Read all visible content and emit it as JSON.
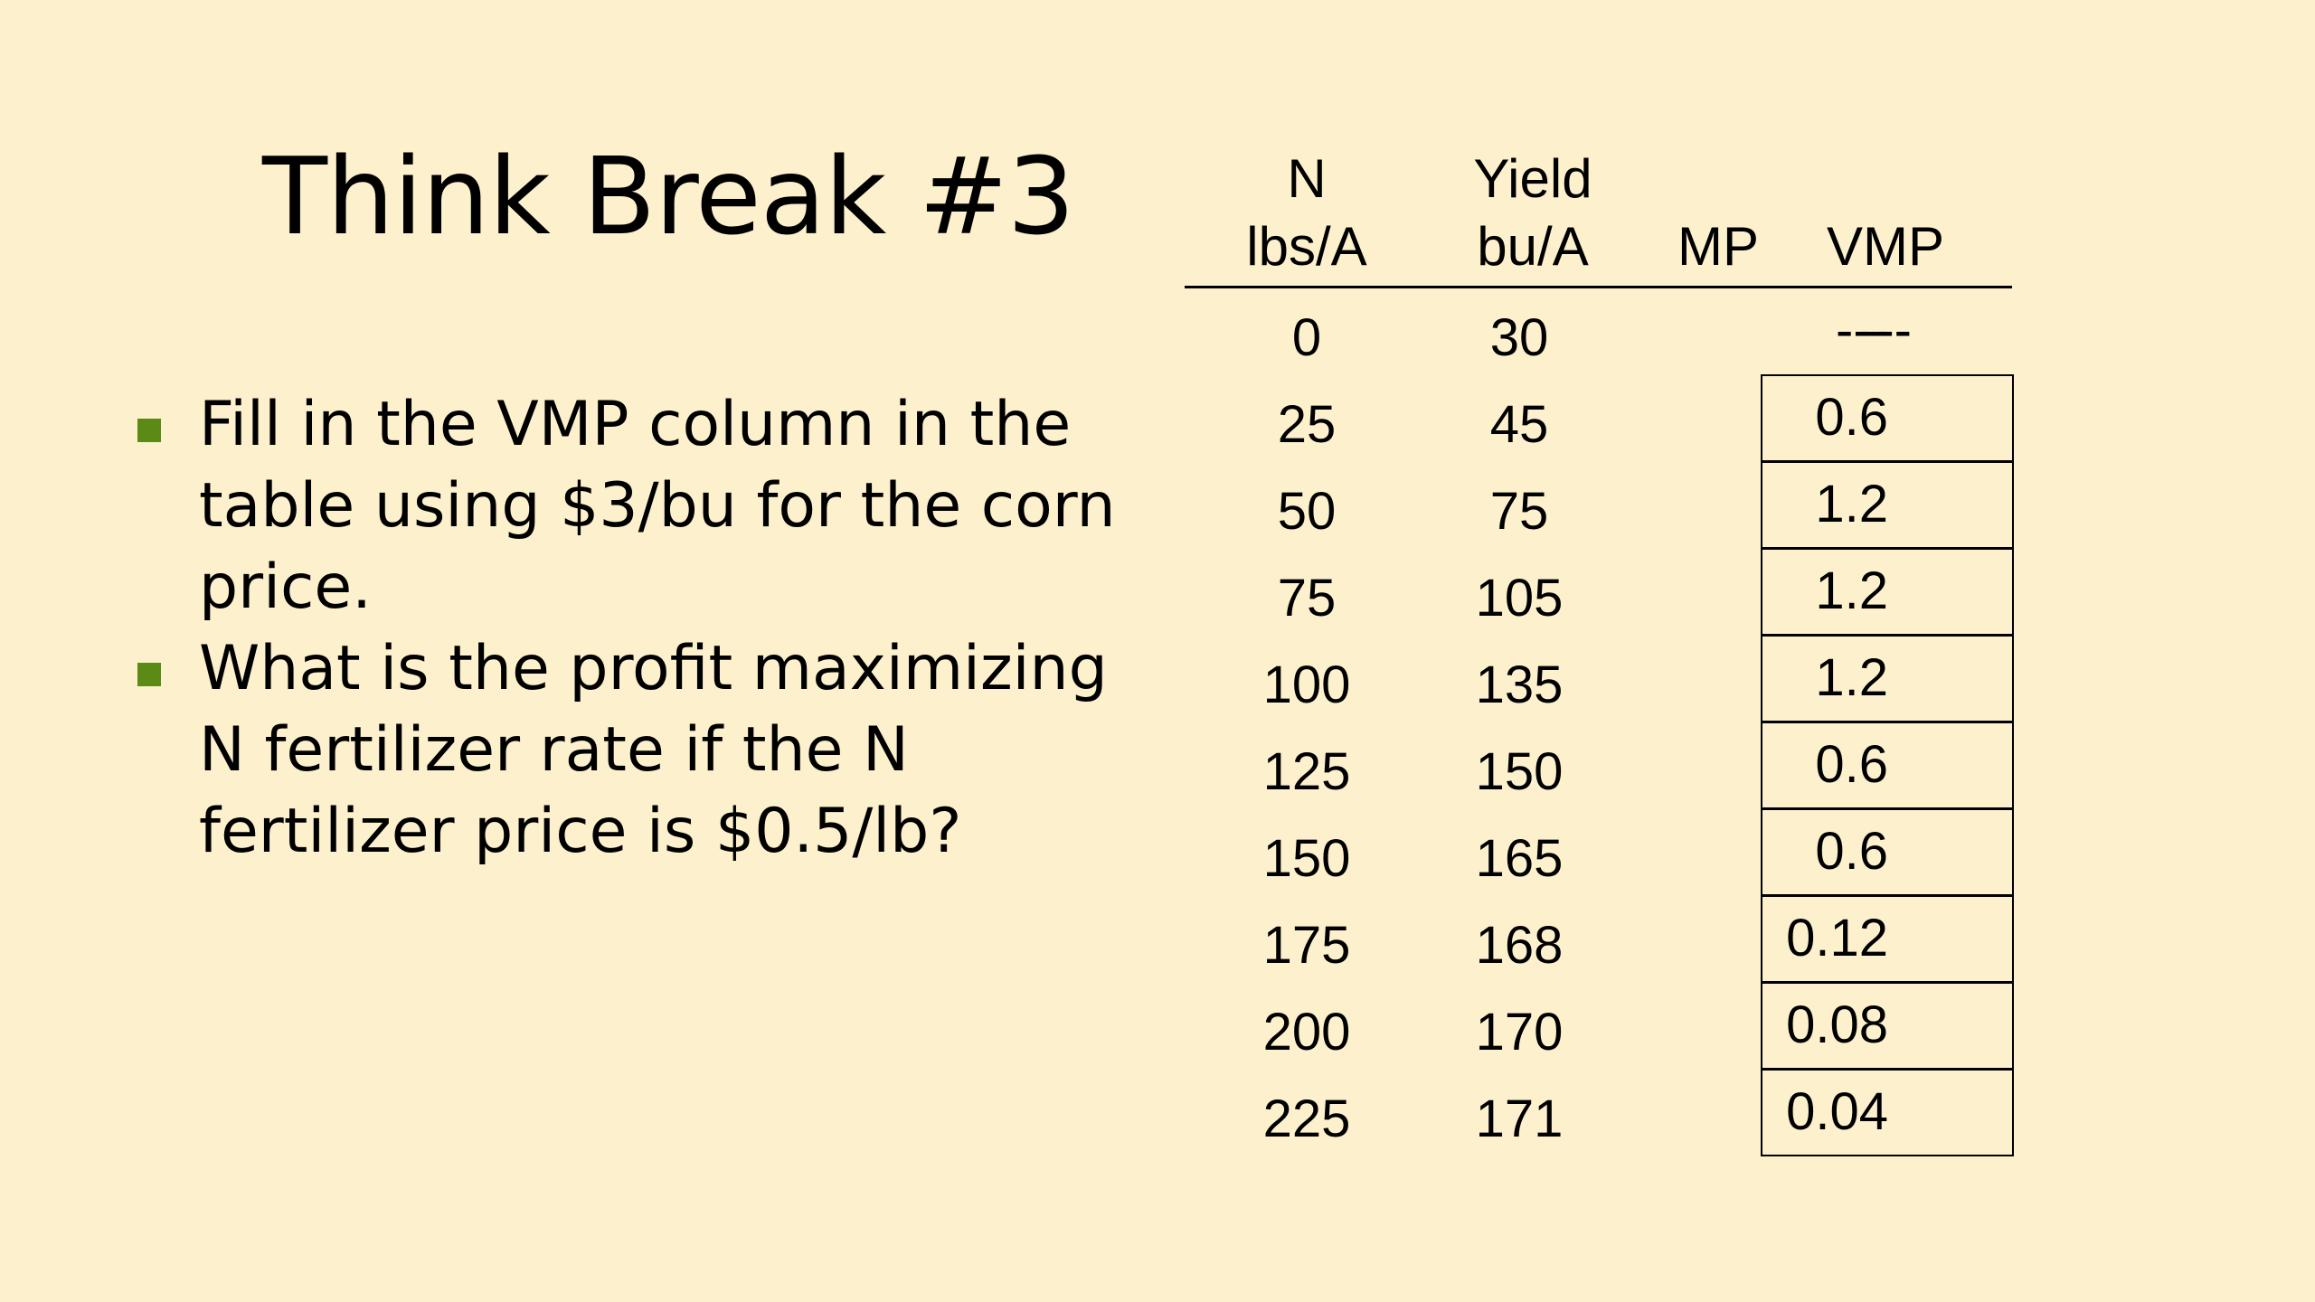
{
  "title": "Think Break #3",
  "bullets": [
    {
      "lines": [
        "Fill in the VMP column in the",
        "table using $3/bu for the corn",
        "price."
      ]
    },
    {
      "lines": [
        "What is the profit maximizing",
        "N fertilizer rate if the N",
        "fertilizer price is $0.5/lb?"
      ]
    }
  ],
  "table": {
    "headers": {
      "n_line1": "N",
      "n_line2": "lbs/A",
      "yield_line1": "Yield",
      "yield_line2": "bu/A",
      "mp": "MP",
      "vmp": "VMP"
    },
    "rows": [
      {
        "n": "0",
        "yield": "30",
        "mp": "---",
        "vmp": "---"
      },
      {
        "n": "25",
        "yield": "45",
        "mp": "0.6",
        "vmp": ""
      },
      {
        "n": "50",
        "yield": "75",
        "mp": "1.2",
        "vmp": ""
      },
      {
        "n": "75",
        "yield": "105",
        "mp": "1.2",
        "vmp": ""
      },
      {
        "n": "100",
        "yield": "135",
        "mp": "1.2",
        "vmp": ""
      },
      {
        "n": "125",
        "yield": "150",
        "mp": "0.6",
        "vmp": ""
      },
      {
        "n": "150",
        "yield": "165",
        "mp": "0.6",
        "vmp": ""
      },
      {
        "n": "175",
        "yield": "168",
        "mp": "0.12",
        "vmp": ""
      },
      {
        "n": "200",
        "yield": "170",
        "mp": "0.08",
        "vmp": ""
      },
      {
        "n": "225",
        "yield": "171",
        "mp": "0.04",
        "vmp": ""
      }
    ]
  },
  "colors": {
    "background": "#fdf1cd",
    "bullet_marker": "#5b8a16",
    "text": "#000000"
  }
}
